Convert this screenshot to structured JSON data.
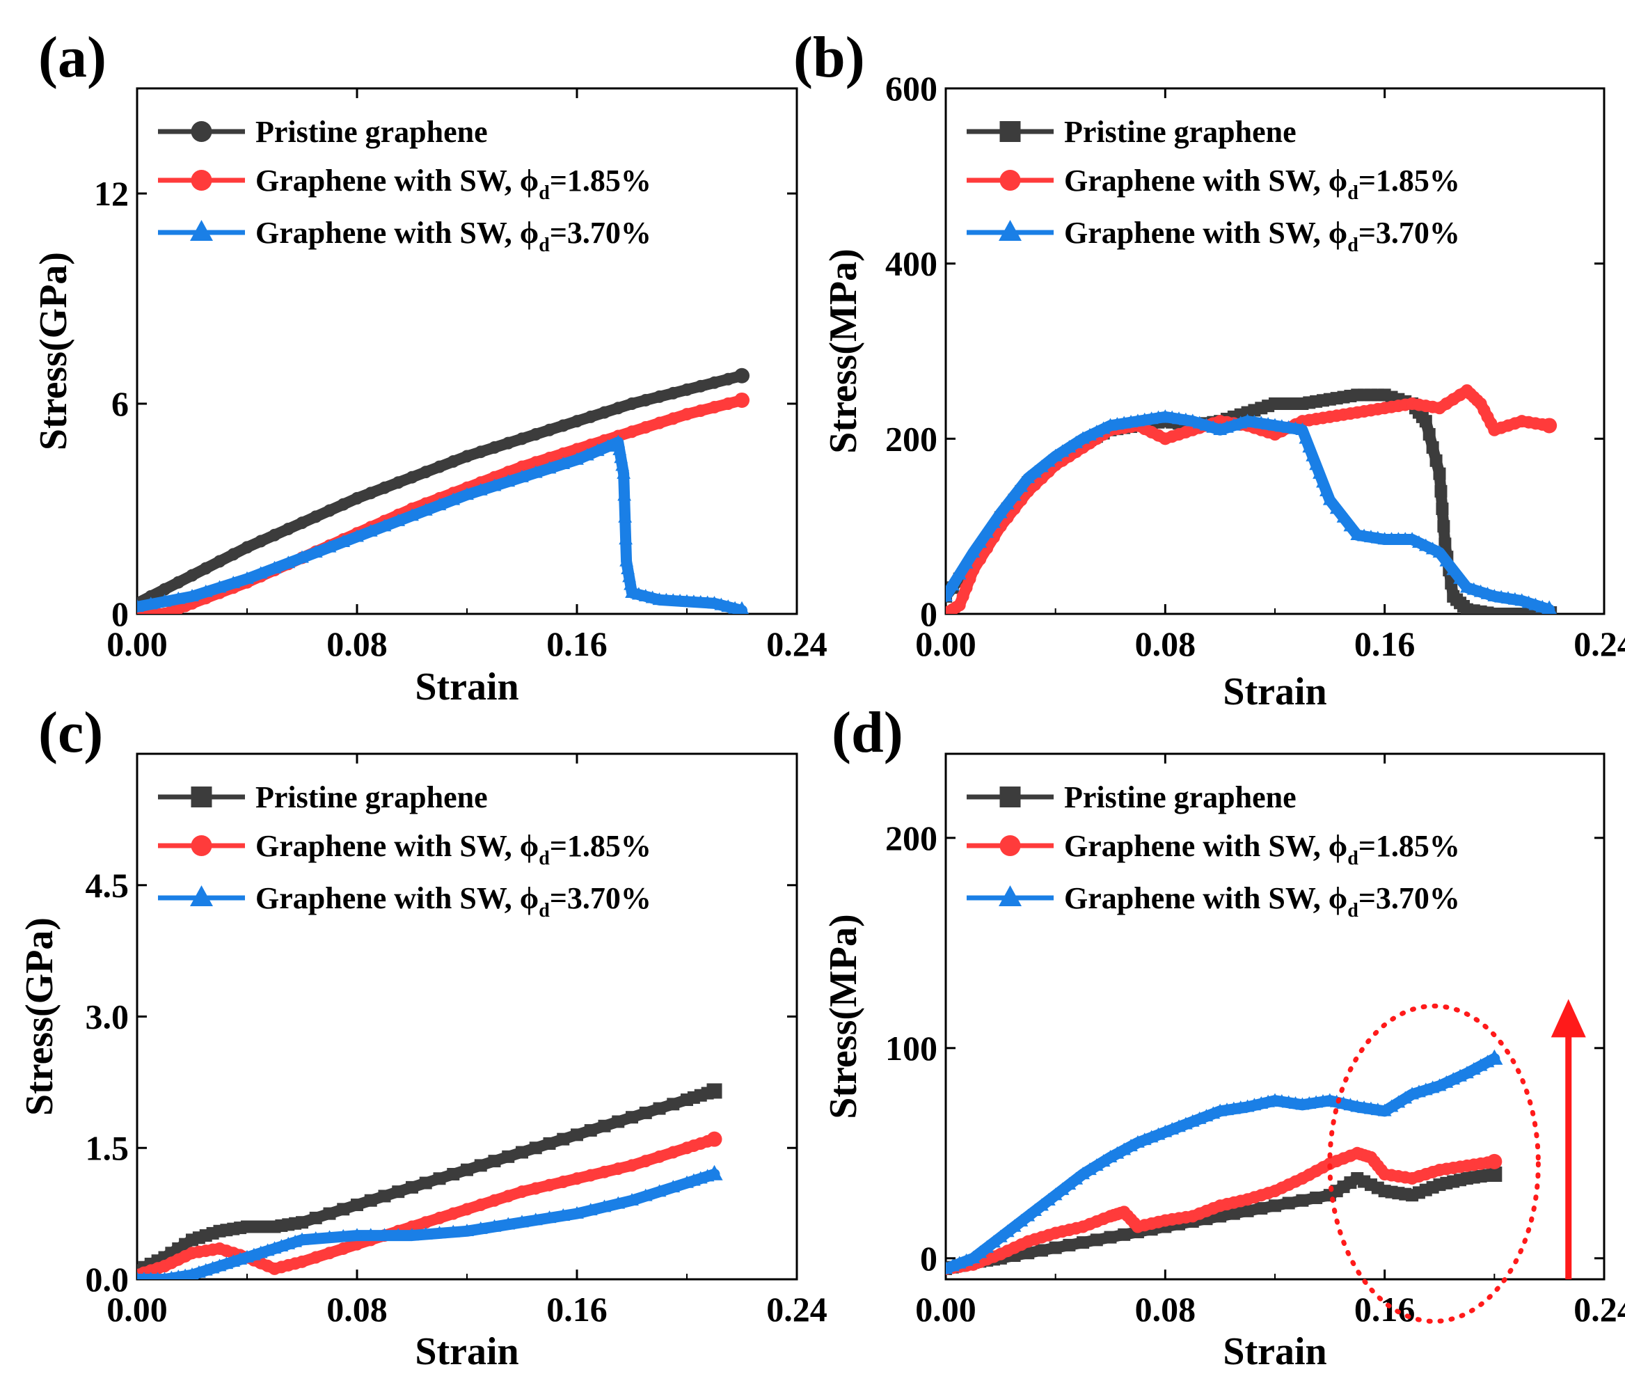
{
  "colors": {
    "pristine": "#3c3c3c",
    "sw185": "#ff3b3b",
    "sw370": "#1a7fe6",
    "annotation": "#ff1a1a"
  },
  "chart_data": [
    {
      "panel": "(a)",
      "type": "line",
      "xlabel": "Strain",
      "ylabel": "Stress(GPa)",
      "xlim": [
        0,
        0.24
      ],
      "ylim": [
        0,
        15
      ],
      "xticks": [
        "0.00",
        "0.08",
        "0.16",
        "0.24"
      ],
      "xtick_values": [
        0,
        0.08,
        0.16,
        0.24
      ],
      "yticks": [
        "0",
        "6",
        "12"
      ],
      "ytick_values": [
        0,
        6,
        12
      ],
      "legend": "top-left",
      "series": [
        {
          "name": "Pristine graphene",
          "marker": "circle",
          "color_key": "pristine",
          "x": [
            0,
            0.02,
            0.04,
            0.06,
            0.08,
            0.1,
            0.12,
            0.14,
            0.16,
            0.18,
            0.2,
            0.22
          ],
          "y": [
            0.3,
            1.1,
            1.9,
            2.6,
            3.3,
            3.9,
            4.5,
            5.0,
            5.5,
            6.0,
            6.4,
            6.8
          ]
        },
        {
          "name": "Graphene with SW, ϕd=1.85%",
          "marker": "circle",
          "color_key": "sw185",
          "x": [
            0,
            0.01,
            0.02,
            0.04,
            0.06,
            0.08,
            0.1,
            0.12,
            0.14,
            0.16,
            0.18,
            0.2,
            0.22
          ],
          "y": [
            0.0,
            0.0,
            0.3,
            0.9,
            1.6,
            2.3,
            3.0,
            3.6,
            4.2,
            4.7,
            5.2,
            5.7,
            6.1
          ]
        },
        {
          "name": "Graphene with SW, ϕd=3.70%",
          "marker": "triangle",
          "color_key": "sw370",
          "x": [
            0,
            0.02,
            0.04,
            0.06,
            0.08,
            0.1,
            0.12,
            0.14,
            0.16,
            0.175,
            0.177,
            0.178,
            0.18,
            0.19,
            0.2,
            0.21,
            0.22
          ],
          "y": [
            0.2,
            0.5,
            1.0,
            1.6,
            2.2,
            2.8,
            3.4,
            3.9,
            4.4,
            4.9,
            4.0,
            1.5,
            0.6,
            0.4,
            0.35,
            0.3,
            0.1
          ]
        }
      ],
      "legend_entries": [
        {
          "main": "Pristine graphene",
          "sub": "",
          "tail": ""
        },
        {
          "main": "Graphene with SW, ϕ",
          "sub": "d",
          "tail": "=1.85%"
        },
        {
          "main": "Graphene with SW, ϕ",
          "sub": "d",
          "tail": "=3.70%"
        }
      ]
    },
    {
      "panel": "(b)",
      "type": "line",
      "xlabel": "Strain",
      "ylabel": "Stress(MPa)",
      "xlim": [
        0,
        0.24
      ],
      "ylim": [
        0,
        600
      ],
      "xticks": [
        "0.00",
        "0.08",
        "0.16",
        "0.24"
      ],
      "xtick_values": [
        0,
        0.08,
        0.16,
        0.24
      ],
      "yticks": [
        "0",
        "200",
        "400",
        "600"
      ],
      "ytick_values": [
        0,
        200,
        400,
        600
      ],
      "legend": "top-left",
      "series": [
        {
          "name": "Pristine graphene",
          "marker": "square",
          "color_key": "pristine",
          "x": [
            0,
            0.01,
            0.02,
            0.03,
            0.04,
            0.05,
            0.06,
            0.07,
            0.08,
            0.09,
            0.1,
            0.11,
            0.12,
            0.13,
            0.14,
            0.15,
            0.16,
            0.17,
            0.175,
            0.18,
            0.182,
            0.185,
            0.19,
            0.2,
            0.21,
            0.22
          ],
          "y": [
            20,
            60,
            110,
            150,
            175,
            195,
            210,
            215,
            220,
            215,
            220,
            230,
            240,
            240,
            245,
            250,
            250,
            240,
            220,
            160,
            80,
            20,
            5,
            0,
            0,
            0
          ]
        },
        {
          "name": "Graphene with SW, ϕd=1.85%",
          "marker": "circle",
          "color_key": "sw185",
          "x": [
            0,
            0.005,
            0.01,
            0.02,
            0.03,
            0.04,
            0.05,
            0.06,
            0.07,
            0.08,
            0.09,
            0.1,
            0.11,
            0.12,
            0.13,
            0.14,
            0.15,
            0.16,
            0.17,
            0.18,
            0.19,
            0.195,
            0.2,
            0.21,
            0.22
          ],
          "y": [
            0,
            10,
            50,
            100,
            140,
            170,
            190,
            210,
            215,
            200,
            210,
            220,
            215,
            205,
            220,
            225,
            230,
            235,
            240,
            235,
            255,
            240,
            210,
            220,
            215
          ]
        },
        {
          "name": "Graphene with SW, ϕd=3.70%",
          "marker": "triangle",
          "color_key": "sw370",
          "x": [
            0,
            0.01,
            0.02,
            0.03,
            0.04,
            0.05,
            0.06,
            0.07,
            0.08,
            0.09,
            0.1,
            0.11,
            0.12,
            0.13,
            0.135,
            0.14,
            0.15,
            0.16,
            0.17,
            0.18,
            0.19,
            0.2,
            0.21,
            0.22
          ],
          "y": [
            20,
            70,
            115,
            155,
            180,
            200,
            215,
            220,
            225,
            220,
            210,
            220,
            215,
            210,
            170,
            130,
            90,
            85,
            85,
            70,
            30,
            20,
            15,
            5
          ]
        }
      ],
      "legend_entries": [
        {
          "main": "Pristine graphene",
          "sub": "",
          "tail": ""
        },
        {
          "main": "Graphene with SW, ϕ",
          "sub": "d",
          "tail": "=1.85%"
        },
        {
          "main": "Graphene with SW, ϕ",
          "sub": "d",
          "tail": "=3.70%"
        }
      ]
    },
    {
      "panel": "(c)",
      "type": "line",
      "xlabel": "Strain",
      "ylabel": "Stress(GPa)",
      "xlim": [
        0,
        0.24
      ],
      "ylim": [
        0,
        6
      ],
      "xticks": [
        "0.00",
        "0.08",
        "0.16",
        "0.24"
      ],
      "xtick_values": [
        0,
        0.08,
        0.16,
        0.24
      ],
      "yticks": [
        "0.0",
        "1.5",
        "3.0",
        "4.5"
      ],
      "ytick_values": [
        0,
        1.5,
        3.0,
        4.5
      ],
      "legend": "top-left",
      "series": [
        {
          "name": "Pristine graphene",
          "marker": "square",
          "color_key": "pristine",
          "x": [
            0,
            0.01,
            0.02,
            0.03,
            0.04,
            0.05,
            0.06,
            0.08,
            0.1,
            0.12,
            0.14,
            0.16,
            0.18,
            0.2,
            0.21
          ],
          "y": [
            0.1,
            0.25,
            0.45,
            0.55,
            0.6,
            0.6,
            0.65,
            0.85,
            1.05,
            1.25,
            1.45,
            1.65,
            1.85,
            2.05,
            2.15
          ]
        },
        {
          "name": "Graphene with SW, ϕd=1.85%",
          "marker": "circle",
          "color_key": "sw185",
          "x": [
            0,
            0.01,
            0.02,
            0.03,
            0.04,
            0.05,
            0.06,
            0.08,
            0.1,
            0.12,
            0.14,
            0.16,
            0.18,
            0.2,
            0.21
          ],
          "y": [
            0.05,
            0.15,
            0.3,
            0.35,
            0.25,
            0.12,
            0.2,
            0.4,
            0.6,
            0.8,
            1.0,
            1.15,
            1.3,
            1.5,
            1.6
          ]
        },
        {
          "name": "Graphene with SW, ϕd=3.70%",
          "marker": "triangle",
          "color_key": "sw370",
          "x": [
            0,
            0.01,
            0.02,
            0.03,
            0.04,
            0.05,
            0.06,
            0.08,
            0.1,
            0.12,
            0.14,
            0.16,
            0.18,
            0.2,
            0.21
          ],
          "y": [
            0.0,
            0.0,
            0.05,
            0.15,
            0.25,
            0.35,
            0.45,
            0.5,
            0.5,
            0.55,
            0.65,
            0.75,
            0.9,
            1.1,
            1.2
          ]
        }
      ],
      "legend_entries": [
        {
          "main": "Pristine graphene",
          "sub": "",
          "tail": ""
        },
        {
          "main": "Graphene with SW, ϕ",
          "sub": "d",
          "tail": "=1.85%"
        },
        {
          "main": "Graphene with SW, ϕ",
          "sub": "d",
          "tail": "=3.70%"
        }
      ]
    },
    {
      "panel": "(d)",
      "type": "line",
      "xlabel": "Strain",
      "ylabel": "Stress(MPa)",
      "xlim": [
        0,
        0.24
      ],
      "ylim": [
        -10,
        240
      ],
      "xticks": [
        "0.00",
        "0.08",
        "0.16",
        "0.24"
      ],
      "xtick_values": [
        0,
        0.08,
        0.16,
        0.24
      ],
      "yticks": [
        "0",
        "100",
        "200"
      ],
      "ytick_values": [
        0,
        100,
        200
      ],
      "legend": "top-left",
      "annotations": [
        {
          "kind": "dotted-ellipse",
          "center": [
            0.178,
            45
          ],
          "semi_axes": [
            0.038,
            75
          ]
        },
        {
          "kind": "upward-arrow",
          "x": 0.227,
          "from": -10,
          "to": 120
        }
      ],
      "series": [
        {
          "name": "Pristine graphene",
          "marker": "square",
          "color_key": "pristine",
          "x": [
            0,
            0.01,
            0.02,
            0.04,
            0.06,
            0.08,
            0.1,
            0.12,
            0.14,
            0.15,
            0.16,
            0.17,
            0.18,
            0.19,
            0.2
          ],
          "y": [
            -5,
            -2,
            0,
            5,
            10,
            15,
            20,
            25,
            30,
            38,
            32,
            30,
            35,
            38,
            40
          ]
        },
        {
          "name": "Graphene with SW, ϕd=1.85%",
          "marker": "circle",
          "color_key": "sw185",
          "x": [
            0,
            0.01,
            0.02,
            0.03,
            0.04,
            0.05,
            0.06,
            0.065,
            0.07,
            0.08,
            0.09,
            0.1,
            0.11,
            0.12,
            0.13,
            0.14,
            0.15,
            0.155,
            0.16,
            0.17,
            0.18,
            0.19,
            0.2
          ],
          "y": [
            -5,
            -3,
            2,
            8,
            12,
            15,
            20,
            22,
            15,
            18,
            20,
            25,
            28,
            32,
            38,
            45,
            50,
            48,
            40,
            38,
            42,
            44,
            46
          ]
        },
        {
          "name": "Graphene with SW, ϕd=3.70%",
          "marker": "triangle",
          "color_key": "sw370",
          "x": [
            0,
            0.01,
            0.02,
            0.03,
            0.04,
            0.05,
            0.06,
            0.07,
            0.08,
            0.09,
            0.1,
            0.11,
            0.12,
            0.13,
            0.14,
            0.15,
            0.16,
            0.17,
            0.18,
            0.19,
            0.2
          ],
          "y": [
            -5,
            0,
            10,
            20,
            30,
            40,
            48,
            55,
            60,
            65,
            70,
            72,
            75,
            73,
            75,
            72,
            70,
            78,
            82,
            88,
            95
          ]
        }
      ],
      "legend_entries": [
        {
          "main": "Pristine graphene",
          "sub": "",
          "tail": ""
        },
        {
          "main": "Graphene with SW, ϕ",
          "sub": "d",
          "tail": "=1.85%"
        },
        {
          "main": "Graphene with SW, ϕ",
          "sub": "d",
          "tail": "=3.70%"
        }
      ]
    }
  ]
}
